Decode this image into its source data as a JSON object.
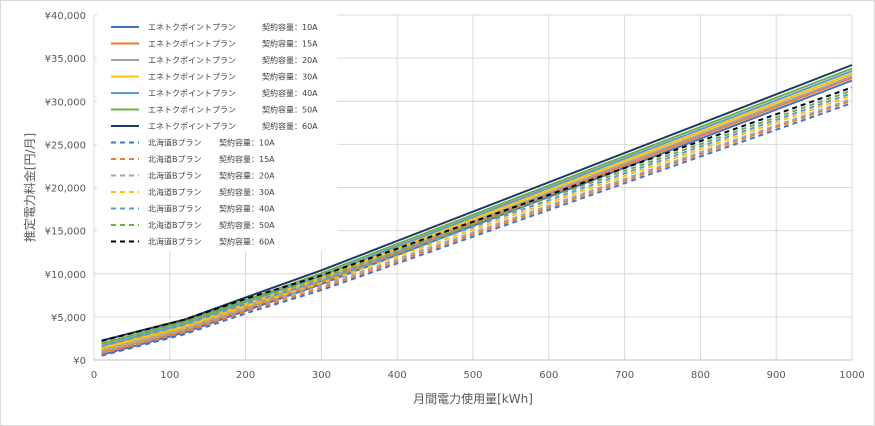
{
  "chart_data": {
    "type": "line",
    "xlabel": "月間電力使用量[kWh]",
    "ylabel": "推定電力料金[円/月]",
    "xlim": [
      0,
      1000
    ],
    "ylim": [
      0,
      40000
    ],
    "x_ticks": [
      0,
      100,
      200,
      300,
      400,
      500,
      600,
      700,
      800,
      900,
      1000
    ],
    "y_ticks": [
      0,
      5000,
      10000,
      15000,
      20000,
      25000,
      30000,
      35000,
      40000
    ],
    "y_tick_labels": [
      "¥0",
      "¥5,000",
      "¥10,000",
      "¥15,000",
      "¥20,000",
      "¥25,000",
      "¥30,000",
      "¥35,000",
      "¥40,000"
    ],
    "grid": true,
    "legend_position": "top-left",
    "x": [
      10,
      120,
      200,
      300,
      1000
    ],
    "series": [
      {
        "name": "エネトクポイントプラン",
        "capacity": "契約容量：10A",
        "color": "#4472C4",
        "dash": false,
        "values": [
          600,
          3200,
          5700,
          8800,
          32400
        ]
      },
      {
        "name": "エネトクポイントプラン",
        "capacity": "契約容量：15A",
        "color": "#ED7D31",
        "dash": false,
        "values": [
          880,
          3450,
          5950,
          9050,
          32700
        ]
      },
      {
        "name": "エネトクポイントプラン",
        "capacity": "契約容量：20A",
        "color": "#A5A5A5",
        "dash": false,
        "values": [
          1150,
          3700,
          6200,
          9300,
          32900
        ]
      },
      {
        "name": "エネトクポイントプラン",
        "capacity": "契約容量：30A",
        "color": "#FFC000",
        "dash": false,
        "values": [
          1400,
          3950,
          6450,
          9550,
          33200
        ]
      },
      {
        "name": "エネトクポイントプラン",
        "capacity": "契約容量：40A",
        "color": "#5B9BD5",
        "dash": false,
        "values": [
          1650,
          4200,
          6700,
          9800,
          33500
        ]
      },
      {
        "name": "エネトクポイントプラン",
        "capacity": "契約容量：50A",
        "color": "#70AD47",
        "dash": false,
        "values": [
          1900,
          4450,
          6950,
          10050,
          33800
        ]
      },
      {
        "name": "エネトクポイントプラン",
        "capacity": "契約容量：60A",
        "color": "#203864",
        "dash": false,
        "values": [
          2250,
          4700,
          7250,
          10400,
          34200
        ]
      },
      {
        "name": "北海道Bプラン",
        "capacity": "契約容量：10A",
        "color": "#4472C4",
        "dash": true,
        "values": [
          500,
          3000,
          5400,
          8100,
          29800
        ]
      },
      {
        "name": "北海道Bプラン",
        "capacity": "契約容量：15A",
        "color": "#ED7D31",
        "dash": true,
        "values": [
          750,
          3250,
          5650,
          8350,
          30100
        ]
      },
      {
        "name": "北海道Bプラン",
        "capacity": "契約容量：20A",
        "color": "#A5A5A5",
        "dash": true,
        "values": [
          1000,
          3500,
          5900,
          8600,
          30300
        ]
      },
      {
        "name": "北海道Bプラン",
        "capacity": "契約容量：30A",
        "color": "#FFC000",
        "dash": true,
        "values": [
          1300,
          3800,
          6200,
          8900,
          30650
        ]
      },
      {
        "name": "北海道Bプラン",
        "capacity": "契約容量：40A",
        "color": "#5B9BD5",
        "dash": true,
        "values": [
          1600,
          4100,
          6500,
          9200,
          30950
        ]
      },
      {
        "name": "北海道Bプラン",
        "capacity": "契約容量：50A",
        "color": "#70AD47",
        "dash": true,
        "values": [
          1900,
          4400,
          6800,
          9500,
          31250
        ]
      },
      {
        "name": "北海道Bプラン",
        "capacity": "契約容量：60A",
        "color": "#000000",
        "dash": true,
        "values": [
          2200,
          4700,
          7100,
          9800,
          31600
        ]
      }
    ]
  }
}
